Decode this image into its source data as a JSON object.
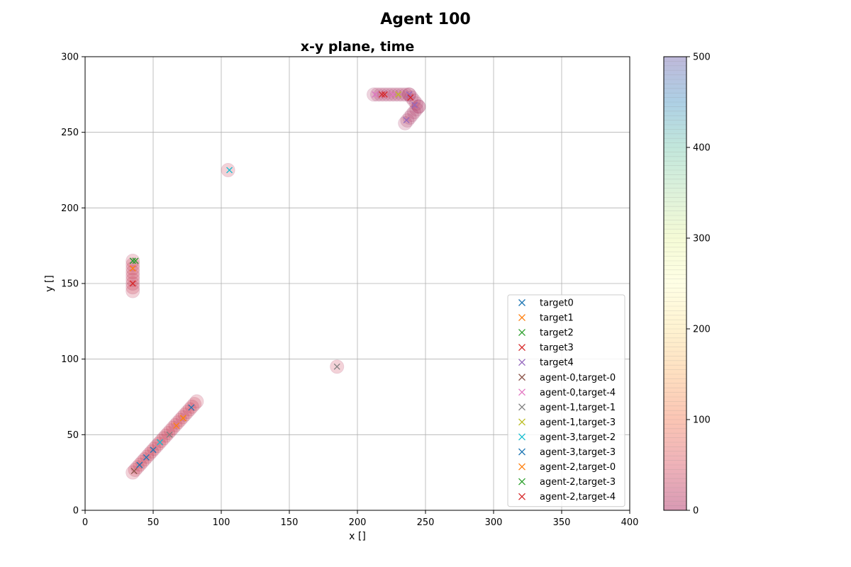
{
  "suptitle": "Agent 100",
  "chart_data": {
    "type": "scatter",
    "title": "x-y plane, time",
    "xlabel": "x []",
    "ylabel": "y []",
    "xlim": [
      0,
      400
    ],
    "ylim": [
      0,
      300
    ],
    "xticks": [
      0,
      50,
      100,
      150,
      200,
      250,
      300,
      350,
      400
    ],
    "yticks": [
      0,
      50,
      100,
      150,
      200,
      250,
      300
    ],
    "grid": true,
    "legend_position": "lower-right",
    "trajectories": [
      {
        "path": [
          [
            35,
            25
          ],
          [
            82,
            72
          ]
        ],
        "color": "#c8334d"
      },
      {
        "path": [
          [
            35,
            145
          ],
          [
            35,
            165
          ]
        ],
        "color": "#c8334d"
      },
      {
        "path": [
          [
            105,
            225
          ]
        ],
        "color": "#c8334d"
      },
      {
        "path": [
          [
            185,
            95
          ]
        ],
        "color": "#c8334d"
      },
      {
        "path": [
          [
            212,
            275
          ],
          [
            238,
            275
          ],
          [
            245,
            267
          ],
          [
            235,
            256
          ]
        ],
        "color": "#b03a68"
      }
    ],
    "series": [
      {
        "name": "target0",
        "color": "#1f77b4",
        "points": [
          [
            35,
            165
          ]
        ]
      },
      {
        "name": "target1",
        "color": "#ff7f0e",
        "points": [
          [
            35,
            160
          ]
        ]
      },
      {
        "name": "target2",
        "color": "#2ca02c",
        "points": [
          [
            35,
            165
          ]
        ]
      },
      {
        "name": "target3",
        "color": "#d62728",
        "points": [
          [
            35,
            150
          ],
          [
            218,
            275
          ]
        ]
      },
      {
        "name": "target4",
        "color": "#9467bd",
        "points": [
          [
            213,
            275
          ],
          [
            238,
            275
          ],
          [
            242,
            268
          ],
          [
            236,
            258
          ]
        ]
      },
      {
        "name": "agent-0,target-0",
        "color": "#8c564b",
        "points": [
          [
            36,
            26
          ],
          [
            40,
            30
          ]
        ]
      },
      {
        "name": "agent-0,target-4",
        "color": "#e377c2",
        "points": [
          [
            213,
            275
          ],
          [
            226,
            275
          ]
        ]
      },
      {
        "name": "agent-1,target-1",
        "color": "#7f7f7f",
        "points": [
          [
            185,
            95
          ],
          [
            62,
            50
          ]
        ]
      },
      {
        "name": "agent-1,target-3",
        "color": "#bcbd22",
        "points": [
          [
            72,
            61
          ],
          [
            230,
            275
          ]
        ]
      },
      {
        "name": "agent-3,target-2",
        "color": "#17becf",
        "points": [
          [
            106,
            225
          ],
          [
            55,
            45
          ]
        ]
      },
      {
        "name": "agent-3,target-3",
        "color": "#1f77b4",
        "points": [
          [
            40,
            30
          ],
          [
            45,
            35
          ],
          [
            50,
            40
          ],
          [
            78,
            68
          ]
        ]
      },
      {
        "name": "agent-2,target-0",
        "color": "#ff7f0e",
        "points": [
          [
            67,
            56
          ],
          [
            72,
            61
          ]
        ]
      },
      {
        "name": "agent-2,target-3",
        "color": "#2ca02c",
        "points": [
          [
            37,
            165
          ]
        ]
      },
      {
        "name": "agent-2,target-4",
        "color": "#d62728",
        "points": [
          [
            239,
            273
          ],
          [
            220,
            275
          ]
        ]
      }
    ],
    "colorbar": {
      "min": 0,
      "max": 500,
      "ticks": [
        0,
        100,
        200,
        300,
        400,
        500
      ],
      "colormap": "Spectral"
    }
  }
}
